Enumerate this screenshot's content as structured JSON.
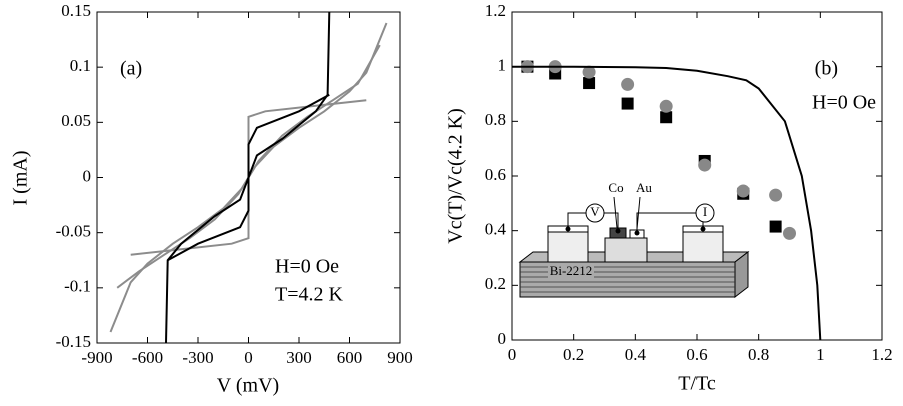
{
  "chart_data": [
    {
      "type": "line",
      "panel_label": "(a)",
      "annotations": [
        "H=0 Oe",
        "T=4.2 K"
      ],
      "x_label": "V (mV)",
      "y_label": "I (mA)",
      "xlim": [
        -900,
        900
      ],
      "xticks": [
        -900,
        -600,
        -300,
        0,
        300,
        600,
        900
      ],
      "ylim": [
        -0.15,
        0.15
      ],
      "yticks": [
        -0.15,
        -0.1,
        -0.05,
        0,
        0.05,
        0.1,
        0.15
      ],
      "series": [
        {
          "color": "#8c8c8c",
          "x": [
            -820,
            -700,
            -600,
            -450,
            -300,
            -150,
            -40,
            0,
            40,
            150,
            300,
            450,
            600,
            700,
            820
          ],
          "values": [
            -0.14,
            -0.095,
            -0.078,
            -0.06,
            -0.045,
            -0.028,
            -0.01,
            0,
            0.01,
            0.028,
            0.045,
            0.06,
            0.078,
            0.095,
            0.14
          ]
        },
        {
          "color": "#8c8c8c",
          "x": [
            -780,
            -650,
            -500,
            -350,
            -200,
            -60,
            0,
            60,
            200,
            350,
            500,
            650,
            780
          ],
          "values": [
            -0.1,
            -0.085,
            -0.07,
            -0.055,
            -0.038,
            -0.015,
            0,
            0.015,
            0.038,
            0.055,
            0.07,
            0.085,
            0.12
          ]
        },
        {
          "color": "#8c8c8c",
          "x": [
            -700,
            -400,
            -100,
            0,
            0,
            100,
            400,
            700
          ],
          "values": [
            -0.07,
            -0.065,
            -0.06,
            -0.055,
            0.055,
            0.06,
            0.065,
            0.07
          ]
        },
        {
          "color": "#000000",
          "x": [
            -490,
            -480,
            -400,
            -200,
            -50,
            0,
            50,
            200,
            400,
            470,
            480
          ],
          "values": [
            -0.15,
            -0.075,
            -0.06,
            -0.035,
            -0.02,
            0,
            0.02,
            0.035,
            0.06,
            0.075,
            0.15
          ]
        },
        {
          "color": "#000000",
          "x": [
            -480,
            -300,
            -50,
            0,
            0,
            50,
            300,
            480
          ],
          "values": [
            -0.075,
            -0.06,
            -0.045,
            -0.03,
            0.03,
            0.045,
            0.06,
            0.075
          ]
        }
      ]
    },
    {
      "type": "scatter",
      "panel_label": "(b)",
      "annotations": [
        "H=0 Oe"
      ],
      "x_label": "T/Tc",
      "y_label": "Vc(T)/Vc(4.2 K)",
      "inset_labels": [
        "V",
        "Co",
        "Au",
        "I",
        "Bi-2212"
      ],
      "xlim": [
        0,
        1.2
      ],
      "xticks": [
        0,
        0.2,
        0.4,
        0.6,
        0.8,
        1,
        1.2
      ],
      "ylim": [
        0,
        1.2
      ],
      "yticks": [
        0,
        0.2,
        0.4,
        0.6,
        0.8,
        1,
        1.2
      ],
      "series": [
        {
          "marker": "square",
          "color": "#000000",
          "x": [
            0.05,
            0.14,
            0.25,
            0.375,
            0.5,
            0.625,
            0.75,
            0.855
          ],
          "values": [
            1.0,
            0.975,
            0.94,
            0.865,
            0.815,
            0.655,
            0.535,
            0.415
          ]
        },
        {
          "marker": "circle",
          "color": "#888888",
          "x": [
            0.05,
            0.14,
            0.25,
            0.375,
            0.5,
            0.625,
            0.75,
            0.855,
            0.9
          ],
          "values": [
            1.0,
            1.0,
            0.98,
            0.935,
            0.855,
            0.64,
            0.545,
            0.53,
            0.39
          ]
        },
        {
          "marker": "line",
          "color": "#000000",
          "x": [
            0,
            0.2,
            0.4,
            0.5,
            0.6,
            0.7,
            0.76,
            0.8,
            0.885,
            0.94,
            0.97,
            0.99,
            1
          ],
          "values": [
            1,
            1,
            0.998,
            0.995,
            0.985,
            0.965,
            0.95,
            0.92,
            0.8,
            0.6,
            0.4,
            0.2,
            0
          ]
        }
      ]
    }
  ]
}
